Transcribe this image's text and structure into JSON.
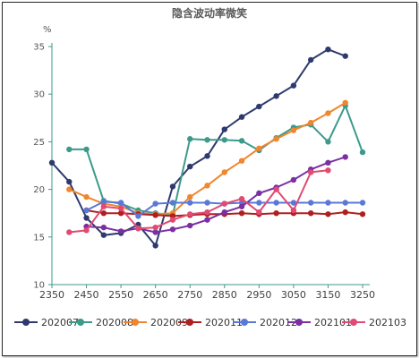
{
  "chart_data": {
    "type": "line",
    "title": "隐含波动率微笑",
    "ylabel": "%",
    "xlabel": "",
    "xlim": [
      2350,
      3250
    ],
    "ylim": [
      10,
      35
    ],
    "x_ticks": [
      2350,
      2450,
      2550,
      2650,
      2750,
      2850,
      2950,
      3050,
      3150,
      3250
    ],
    "y_ticks": [
      10,
      15,
      20,
      25,
      30,
      35
    ],
    "grid": false,
    "legend_position": "bottom",
    "series": [
      {
        "name": "202007",
        "color": "#2e3a6e",
        "x": [
          2350,
          2400,
          2450,
          2500,
          2550,
          2600,
          2650,
          2700,
          2750,
          2800,
          2850,
          2900,
          2950,
          3000,
          3050,
          3100,
          3150,
          3200
        ],
        "y": [
          22.8,
          20.8,
          17.0,
          15.2,
          15.4,
          16.3,
          14.1,
          20.3,
          22.4,
          23.5,
          26.3,
          27.6,
          28.7,
          29.8,
          30.9,
          33.6,
          34.7,
          34.0
        ]
      },
      {
        "name": "202008",
        "color": "#3d9a8b",
        "x": [
          2400,
          2450,
          2500,
          2550,
          2600,
          2650,
          2700,
          2750,
          2800,
          2850,
          2900,
          2950,
          3000,
          3050,
          3100,
          3150,
          3200,
          3250
        ],
        "y": [
          24.2,
          24.2,
          18.8,
          18.5,
          17.8,
          17.5,
          17.3,
          25.3,
          25.2,
          25.2,
          25.1,
          24.1,
          25.4,
          26.5,
          26.8,
          25.0,
          28.8,
          23.9
        ]
      },
      {
        "name": "202009",
        "color": "#f0862d",
        "x": [
          2400,
          2450,
          2500,
          2550,
          2600,
          2650,
          2700,
          2750,
          2800,
          2850,
          2900,
          2950,
          3000,
          3050,
          3100,
          3150,
          3200
        ],
        "y": [
          20.0,
          19.2,
          18.5,
          18.2,
          17.5,
          17.4,
          17.5,
          19.2,
          20.4,
          21.8,
          23.0,
          24.3,
          25.3,
          26.2,
          27.0,
          28.0,
          29.1
        ]
      },
      {
        "name": "202011",
        "color": "#b01f1f",
        "x": [
          2450,
          2500,
          2550,
          2600,
          2650,
          2700,
          2750,
          2800,
          2850,
          2900,
          2950,
          3000,
          3050,
          3100,
          3150,
          3200,
          3250
        ],
        "y": [
          17.8,
          17.5,
          17.5,
          17.4,
          17.3,
          17.2,
          17.3,
          17.4,
          17.4,
          17.5,
          17.4,
          17.5,
          17.5,
          17.5,
          17.4,
          17.6,
          17.4
        ]
      },
      {
        "name": "202012",
        "color": "#5a78d6",
        "x": [
          2450,
          2500,
          2550,
          2600,
          2650,
          2700,
          2750,
          2800,
          2850,
          2900,
          2950,
          3000,
          3050,
          3100,
          3150,
          3200,
          3250
        ],
        "y": [
          17.8,
          18.7,
          18.6,
          17.2,
          18.5,
          18.6,
          18.6,
          18.6,
          18.5,
          18.6,
          18.6,
          18.6,
          18.6,
          18.6,
          18.6,
          18.6,
          18.6
        ]
      },
      {
        "name": "202101",
        "color": "#7a2fa3",
        "x": [
          2450,
          2500,
          2550,
          2600,
          2650,
          2700,
          2750,
          2800,
          2850,
          2900,
          2950,
          3000,
          3050,
          3100,
          3150,
          3200
        ],
        "y": [
          16.1,
          16.0,
          15.6,
          15.9,
          15.5,
          15.8,
          16.2,
          16.8,
          17.6,
          18.2,
          19.6,
          20.2,
          21.0,
          22.1,
          22.8,
          23.4
        ]
      },
      {
        "name": "202103",
        "color": "#e04a73",
        "x": [
          2400,
          2450,
          2500,
          2550,
          2600,
          2650,
          2700,
          2750,
          2800,
          2850,
          2900,
          2950,
          3000,
          3050,
          3100,
          3150
        ],
        "y": [
          15.5,
          15.7,
          18.2,
          18.0,
          15.9,
          16.0,
          16.8,
          17.4,
          17.6,
          18.5,
          19.0,
          17.6,
          20.0,
          17.8,
          21.8,
          22.0
        ]
      }
    ]
  }
}
